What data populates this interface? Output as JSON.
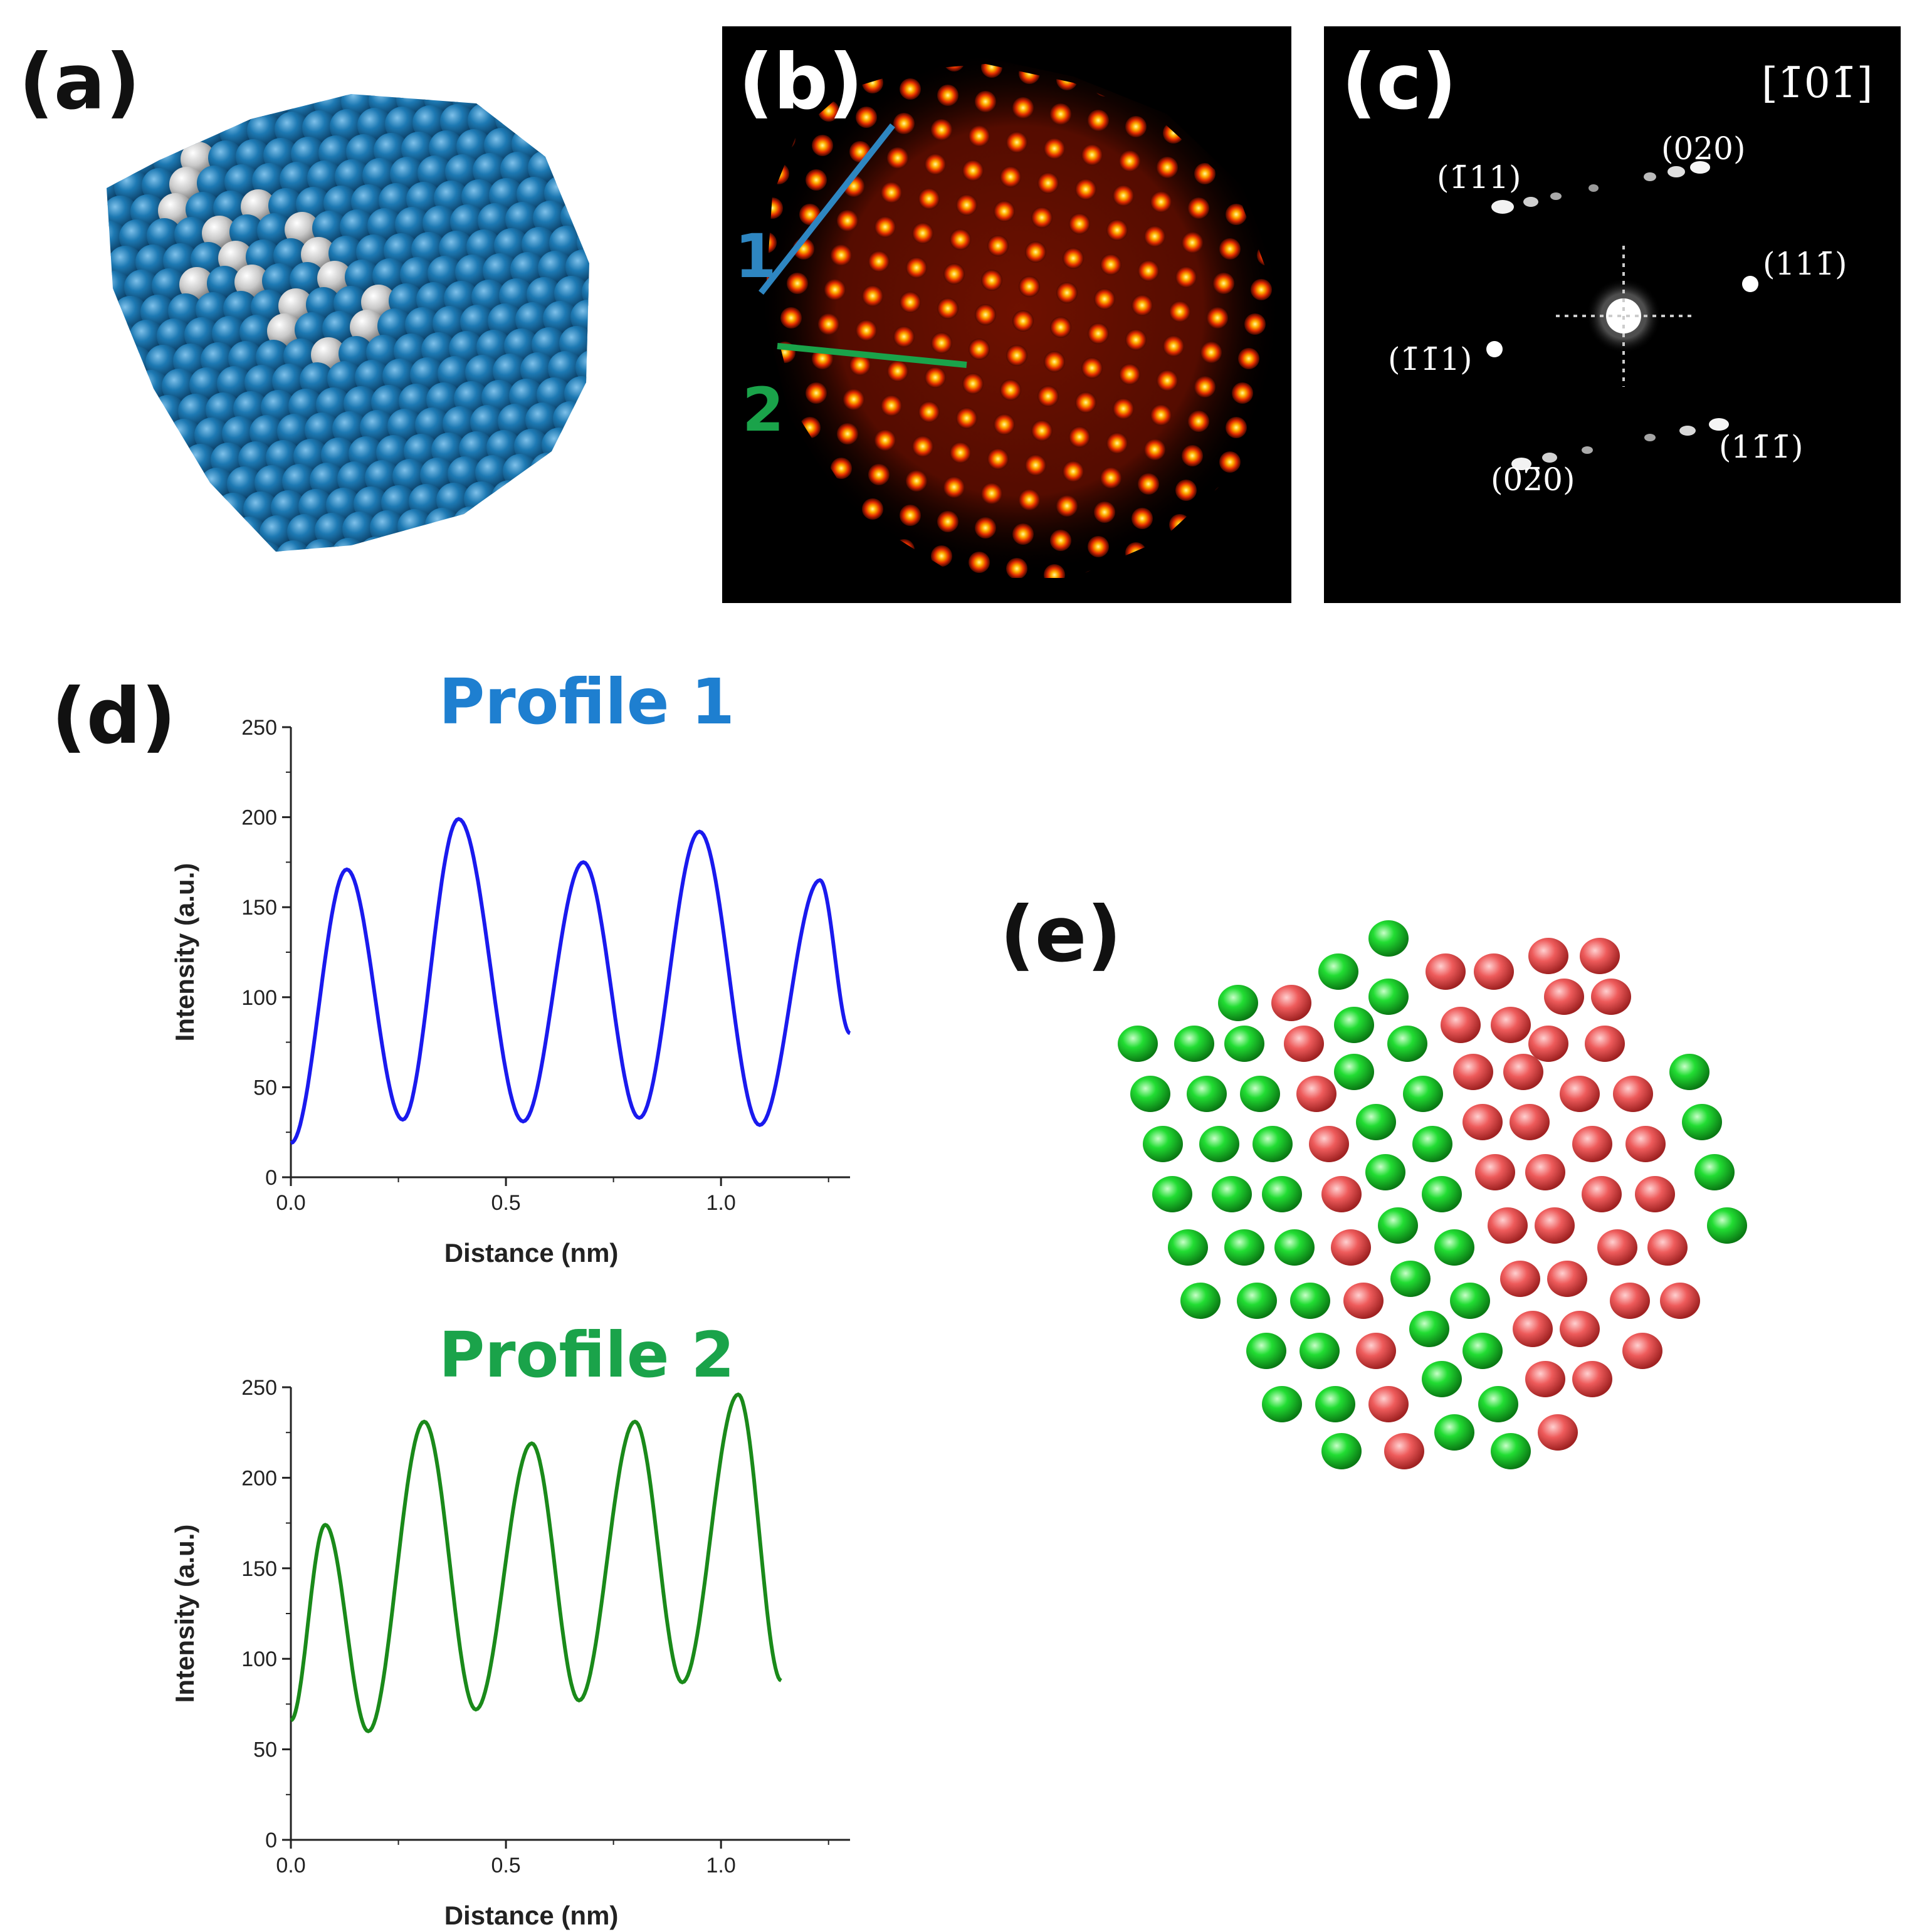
{
  "figure": {
    "panel_a": {
      "label": "(a)"
    },
    "panel_b": {
      "label": "(b)",
      "line1_label": "1",
      "line2_label": "2",
      "line1_color": "#2e86c1",
      "line2_color": "#1aa34a"
    },
    "panel_c": {
      "label": "(c)",
      "zone_axis": "[1̄01̄]",
      "spots": [
        "(1̄11)",
        "(020)",
        "(111̄)",
        "(1̄1̄1)",
        "(02̄0)",
        "(11̄1̄)"
      ]
    },
    "panel_d": {
      "label": "(d)"
    },
    "panel_e": {
      "label": "(e)",
      "colors": {
        "green": "#22cc33",
        "red": "#ee5555"
      }
    }
  },
  "chart_data": [
    {
      "type": "line",
      "title": "Profile 1",
      "xlabel": "Distance (nm)",
      "ylabel": "Intensity (a.u.)",
      "xlim": [
        0,
        1.3
      ],
      "ylim": [
        0,
        250
      ],
      "xticks": [
        "0.0",
        "0.5",
        "1.0"
      ],
      "yticks": [
        "0",
        "50",
        "100",
        "150",
        "200",
        "250"
      ],
      "color": "#1a1aee",
      "series": [
        {
          "name": "Profile 1",
          "x": [
            0.0,
            0.13,
            0.26,
            0.39,
            0.54,
            0.68,
            0.81,
            0.95,
            1.09,
            1.23,
            1.3
          ],
          "y": [
            19,
            171,
            32,
            199,
            31,
            175,
            33,
            192,
            29,
            165,
            80
          ]
        }
      ]
    },
    {
      "type": "line",
      "title": "Profile 2",
      "xlabel": "Distance (nm)",
      "ylabel": "Intensity (a.u.)",
      "xlim": [
        0,
        1.3
      ],
      "ylim": [
        0,
        250
      ],
      "xticks": [
        "0.0",
        "0.5",
        "1.0"
      ],
      "yticks": [
        "0",
        "50",
        "100",
        "150",
        "200",
        "250"
      ],
      "color": "#1a8a1a",
      "series": [
        {
          "name": "Profile 2",
          "x": [
            0.0,
            0.08,
            0.18,
            0.31,
            0.43,
            0.56,
            0.67,
            0.8,
            0.91,
            1.04,
            1.14
          ],
          "y": [
            66,
            174,
            60,
            231,
            72,
            219,
            77,
            231,
            87,
            246,
            88
          ]
        }
      ]
    }
  ]
}
